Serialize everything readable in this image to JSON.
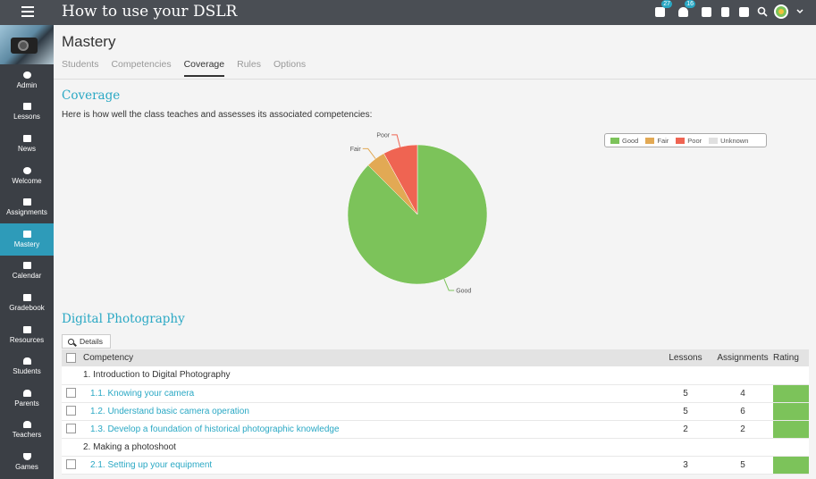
{
  "header": {
    "title": "How to use your DSLR",
    "badges": {
      "messages": "27",
      "notifications": "16"
    }
  },
  "sidebar": {
    "items": [
      {
        "label": "Admin"
      },
      {
        "label": "Lessons"
      },
      {
        "label": "News"
      },
      {
        "label": "Welcome"
      },
      {
        "label": "Assignments"
      },
      {
        "label": "Mastery"
      },
      {
        "label": "Calendar"
      },
      {
        "label": "Gradebook"
      },
      {
        "label": "Resources"
      },
      {
        "label": "Students"
      },
      {
        "label": "Parents"
      },
      {
        "label": "Teachers"
      },
      {
        "label": "Games"
      }
    ]
  },
  "page": {
    "title": "Mastery",
    "tabs": [
      "Students",
      "Competencies",
      "Coverage",
      "Rules",
      "Options"
    ],
    "active_tab": "Coverage",
    "coverage_title": "Coverage",
    "coverage_desc": "Here is how well the class teaches and assesses its associated competencies:",
    "section_title": "Digital Photography",
    "details_label": "Details"
  },
  "chart_data": {
    "type": "pie",
    "slices": [
      {
        "label": "Good",
        "value": 87.5,
        "color": "#7cc35a"
      },
      {
        "label": "Fair",
        "value": 4.5,
        "color": "#e2a954"
      },
      {
        "label": "Poor",
        "value": 8.0,
        "color": "#ef6452"
      },
      {
        "label": "Unknown",
        "value": 0,
        "color": "#e0e0e0"
      }
    ],
    "legend": [
      "Good",
      "Fair",
      "Poor",
      "Unknown"
    ],
    "legend_position": "top-right"
  },
  "table": {
    "headers": {
      "competency": "Competency",
      "lessons": "Lessons",
      "assignments": "Assignments",
      "rating": "Rating"
    },
    "rows": [
      {
        "kind": "group",
        "name": "1. Introduction to Digital Photography"
      },
      {
        "kind": "item",
        "name": "1.1. Knowing your camera",
        "lessons": "5",
        "assignments": "4",
        "rating": "Good"
      },
      {
        "kind": "item",
        "name": "1.2. Understand basic camera operation",
        "lessons": "5",
        "assignments": "6",
        "rating": "Good"
      },
      {
        "kind": "item",
        "name": "1.3. Develop a foundation of historical photographic knowledge",
        "lessons": "2",
        "assignments": "2",
        "rating": "Good"
      },
      {
        "kind": "group",
        "name": "2. Making a photoshoot"
      },
      {
        "kind": "item",
        "name": "2.1. Setting up your equipment",
        "lessons": "3",
        "assignments": "5",
        "rating": "Good"
      }
    ]
  }
}
